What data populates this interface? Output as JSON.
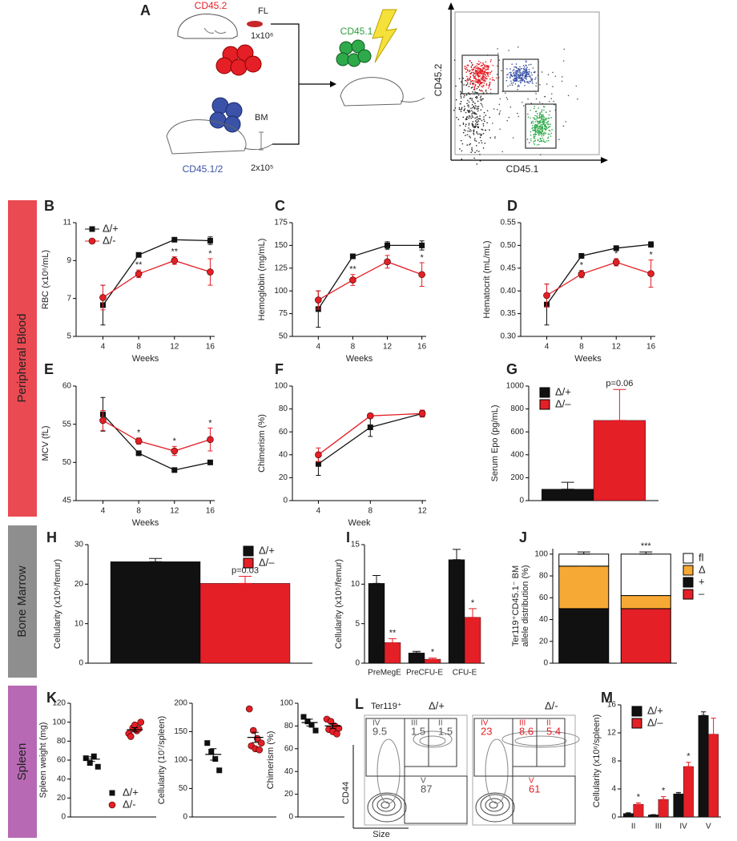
{
  "panel_a": {
    "label": "A",
    "donor_fl": "CD45.2",
    "fl": "FL",
    "fl_dose": "1x10⁶",
    "recipient": "CD45.1",
    "bm": "BM",
    "bm_donor": "CD45.1/2",
    "bm_dose": "2x10⁵",
    "flow_y": "CD45.2",
    "flow_x": "CD45.1"
  },
  "sections": [
    "Peripheral Blood",
    "Bone Marrow",
    "Spleen"
  ],
  "panel_l": {
    "label": "L",
    "gate_label": "Ter119⁺",
    "y_axis": "CD44",
    "x_axis": "Size",
    "plots": [
      {
        "title": "Δ/+",
        "gates": [
          {
            "name": "IV",
            "value": 9.5
          },
          {
            "name": "III",
            "value": 1.5
          },
          {
            "name": "II",
            "value": 1.5
          },
          {
            "name": "V",
            "value": 87
          }
        ]
      },
      {
        "title": "Δ/-",
        "gates": [
          {
            "name": "IV",
            "value": 23
          },
          {
            "name": "III",
            "value": 8.6
          },
          {
            "name": "II",
            "value": 5.4
          },
          {
            "name": "V",
            "value": 61
          }
        ]
      }
    ]
  },
  "chart_data": [
    {
      "type": "line",
      "label": "B",
      "ylabel": "RBC (x10⁶/mL)",
      "xlabel": "Weeks",
      "x": [
        4,
        8,
        12,
        16
      ],
      "xlim": [
        1,
        16.5
      ],
      "xticks": [
        4,
        8,
        12,
        16
      ],
      "ylim": [
        5,
        11
      ],
      "yticks": [
        5,
        7,
        9,
        11
      ],
      "legend": "upper left",
      "series": [
        {
          "name": "Δ/+",
          "color": "#111111",
          "marker": "square",
          "values": [
            6.65,
            9.3,
            10.1,
            10.05
          ],
          "errors": [
            1.05,
            0.1,
            0.1,
            0.2
          ]
        },
        {
          "name": "Δ/-",
          "color": "#e41f26",
          "marker": "circle",
          "values": [
            7.05,
            8.3,
            9.0,
            8.4
          ],
          "errors": [
            0.65,
            0.2,
            0.2,
            0.7
          ],
          "annotations": [
            null,
            "**",
            "**",
            "*"
          ]
        }
      ]
    },
    {
      "type": "line",
      "label": "C",
      "ylabel": "Hemoglobin (mg/mL)",
      "xlabel": "Weeks",
      "x": [
        4,
        8,
        12,
        16
      ],
      "xlim": [
        1,
        16.5
      ],
      "xticks": [
        4,
        8,
        12,
        16
      ],
      "ylim": [
        50,
        175
      ],
      "yticks": [
        50,
        75,
        100,
        125,
        150,
        175
      ],
      "series": [
        {
          "color": "#111111",
          "marker": "square",
          "values": [
            80,
            138,
            150,
            150
          ],
          "errors": [
            20,
            2,
            4,
            5
          ]
        },
        {
          "color": "#e41f26",
          "marker": "circle",
          "values": [
            90,
            112,
            132,
            118
          ],
          "errors": [
            10,
            6,
            7,
            13
          ],
          "annotations": [
            null,
            "**",
            "*",
            "*"
          ]
        }
      ]
    },
    {
      "type": "line",
      "label": "D",
      "ylabel": "Hematocrit (mL/mL)",
      "xlabel": "Weeks",
      "x": [
        4,
        8,
        12,
        16
      ],
      "xlim": [
        1,
        16.5
      ],
      "xticks": [
        4,
        8,
        12,
        16
      ],
      "ylim": [
        0.3,
        0.55
      ],
      "yticks": [
        {
          "value": 0.3,
          "label": "0.30"
        },
        0.35,
        {
          "value": 0.4,
          "label": "0.40"
        },
        0.45,
        {
          "value": 0.5,
          "label": "0.50"
        },
        0.55
      ],
      "series": [
        {
          "color": "#111111",
          "marker": "square",
          "values": [
            0.37,
            0.477,
            0.494,
            0.502
          ],
          "errors": [
            0.045,
            0.003,
            0.005,
            0.006
          ]
        },
        {
          "color": "#e41f26",
          "marker": "circle",
          "values": [
            0.39,
            0.437,
            0.463,
            0.438
          ],
          "errors": [
            0.025,
            0.008,
            0.008,
            0.03
          ],
          "annotations": [
            null,
            "*",
            "*",
            "*"
          ]
        }
      ]
    },
    {
      "type": "line",
      "label": "E",
      "ylabel": "MCV (fL)",
      "xlabel": "Weeks",
      "x": [
        4,
        8,
        12,
        16
      ],
      "xlim": [
        1,
        16.5
      ],
      "xticks": [
        4,
        8,
        12,
        16
      ],
      "ylim": [
        45,
        60
      ],
      "yticks": [
        45,
        50,
        55,
        60
      ],
      "series": [
        {
          "color": "#111111",
          "marker": "square",
          "values": [
            56.3,
            51.2,
            49.0,
            50.0
          ],
          "errors": [
            2.2,
            0.2,
            0.2,
            0.2
          ]
        },
        {
          "color": "#e41f26",
          "marker": "circle",
          "values": [
            55.5,
            52.8,
            51.5,
            53.0
          ],
          "errors": [
            1.3,
            0.4,
            0.6,
            1.5
          ],
          "annotations": [
            null,
            "*",
            "*",
            "*"
          ]
        }
      ]
    },
    {
      "type": "line",
      "label": "F",
      "ylabel": "Chimerism (%)",
      "xlabel": "Week",
      "x": [
        4,
        8,
        12
      ],
      "xlim": [
        2,
        12.3
      ],
      "xticks": [
        4,
        8,
        12
      ],
      "ylim": [
        0,
        100
      ],
      "yticks": [
        0,
        20,
        40,
        60,
        80,
        100
      ],
      "series": [
        {
          "color": "#111111",
          "marker": "square",
          "values": [
            32,
            64,
            76
          ],
          "errors": [
            10,
            8,
            3
          ]
        },
        {
          "color": "#e41f26",
          "marker": "circle",
          "values": [
            40,
            74,
            76
          ],
          "errors": [
            6,
            2,
            3
          ]
        }
      ]
    },
    {
      "type": "bar",
      "label": "G",
      "ylabel": "Serum Epo (pg/mL)",
      "categories": [
        null
      ],
      "ylim": [
        0,
        1000
      ],
      "yticks": [
        0,
        200,
        400,
        600,
        800,
        1000
      ],
      "legend": "upper left",
      "series": [
        {
          "name": "Δ/+",
          "color": "#111111",
          "values": [
            100
          ],
          "errors": [
            60
          ]
        },
        {
          "name": "Δ/–",
          "color": "#e41f26",
          "values": [
            700
          ],
          "errors": [
            270
          ],
          "annotations": [
            "p=0.06"
          ]
        }
      ]
    },
    {
      "type": "bar",
      "label": "H",
      "ylabel": "Cellularity (x10⁶/femur)",
      "categories": [
        null
      ],
      "ylim": [
        0,
        30
      ],
      "yticks": [
        0,
        10,
        20,
        30
      ],
      "legend": "upper right",
      "series": [
        {
          "name": "Δ/+",
          "color": "#111111",
          "values": [
            25.7
          ],
          "errors": [
            0.8
          ]
        },
        {
          "name": "Δ/–",
          "color": "#e41f26",
          "values": [
            20.2
          ],
          "errors": [
            1.8
          ],
          "annotations": [
            "p=0.03"
          ]
        }
      ]
    },
    {
      "type": "bar",
      "label": "I",
      "ylabel": "Cellularity (x10⁵/femur)",
      "categories": [
        "PreMegE",
        "PreCFU-E",
        "CFU-E"
      ],
      "ylim": [
        0,
        15
      ],
      "yticks": [
        0,
        5,
        10,
        15
      ],
      "series": [
        {
          "color": "#111111",
          "values": [
            10.1,
            1.3,
            13.1
          ],
          "errors": [
            1.0,
            0.2,
            1.3
          ]
        },
        {
          "color": "#e41f26",
          "values": [
            2.6,
            0.5,
            5.8
          ],
          "errors": [
            0.5,
            0.15,
            1.1
          ],
          "annotations": [
            "**",
            "*",
            "*"
          ]
        }
      ]
    },
    {
      "type": "stacked_bar",
      "label": "J",
      "ylabel": [
        "Ter119⁺CD45.1⁻ BM",
        "allele distribution (%)"
      ],
      "categories": [
        null,
        null
      ],
      "ylim": [
        0,
        105
      ],
      "yticks": [
        0,
        20,
        40,
        60,
        80,
        100
      ],
      "legend": "right",
      "series": [
        {
          "name": "–",
          "color": "#e41f26",
          "values": [
            0,
            50
          ]
        },
        {
          "name": "+",
          "color": "#111111",
          "values": [
            50,
            0
          ]
        },
        {
          "name": "Δ",
          "color": "#f7a935",
          "values": [
            39,
            12
          ],
          "errors": [
            3,
            2
          ],
          "annotations": [
            null,
            "***"
          ]
        },
        {
          "name": "fl",
          "color": "#ffffff",
          "values": [
            11,
            38
          ],
          "errors": [
            2,
            2
          ],
          "annotations": [
            null,
            "***"
          ]
        }
      ]
    },
    {
      "type": "dot",
      "label": "K",
      "ylabel": "Spleen weight (mg)",
      "ylim": [
        0,
        120
      ],
      "yticks": [
        0,
        20,
        40,
        60,
        80,
        100,
        120
      ],
      "legend": "lower right",
      "series": [
        {
          "name": "Δ/+",
          "color": "#111111",
          "marker": "square",
          "values": [
            62,
            57,
            64,
            53
          ],
          "mean": 61,
          "sem": 2.5
        },
        {
          "name": "Δ/-",
          "color": "#e41f26",
          "marker": "circle",
          "values": [
            88,
            94,
            91,
            100,
            85,
            97,
            93
          ],
          "mean": 92,
          "sem": 2.2
        }
      ]
    },
    {
      "type": "dot",
      "ylabel": "Cellularity (10⁷/spleen)",
      "ylim": [
        0,
        200
      ],
      "yticks": [
        0,
        50,
        100,
        150,
        200
      ],
      "series": [
        {
          "color": "#111111",
          "marker": "square",
          "values": [
            130,
            115,
            102,
            82
          ],
          "mean": 110,
          "sem": 10
        },
        {
          "color": "#e41f26",
          "marker": "circle",
          "values": [
            190,
            152,
            138,
            130,
            125,
            120,
            118
          ],
          "mean": 140,
          "sem": 9
        }
      ]
    },
    {
      "type": "dot",
      "ylabel": "Chimerism (%)",
      "ylim": [
        0,
        100
      ],
      "yticks": [
        0,
        20,
        40,
        60,
        80,
        100
      ],
      "series": [
        {
          "color": "#111111",
          "marker": "square",
          "values": [
            88,
            84,
            81,
            76
          ],
          "mean": 83,
          "sem": 3
        },
        {
          "color": "#e41f26",
          "marker": "circle",
          "values": [
            86,
            84,
            80,
            78,
            77,
            75,
            73
          ],
          "mean": 80,
          "sem": 2
        }
      ]
    },
    {
      "type": "bar",
      "label": "M",
      "ylabel": "Cellularity (x10⁶/spleen)",
      "categories": [
        "II",
        "III",
        "IV",
        "V"
      ],
      "ylim": [
        0,
        16
      ],
      "yticks": [
        0,
        4,
        8,
        12,
        16
      ],
      "legend": "upper left",
      "series": [
        {
          "name": "Δ/+",
          "color": "#111111",
          "values": [
            0.5,
            0.3,
            3.3,
            14.5
          ],
          "errors": [
            0.1,
            0.05,
            0.2,
            0.5
          ]
        },
        {
          "name": "Δ/–",
          "color": "#e41f26",
          "values": [
            1.8,
            2.5,
            7.2,
            11.8
          ],
          "errors": [
            0.2,
            0.4,
            0.6,
            2.3
          ],
          "annotations": [
            "*",
            "*",
            "*",
            null
          ]
        }
      ]
    }
  ]
}
